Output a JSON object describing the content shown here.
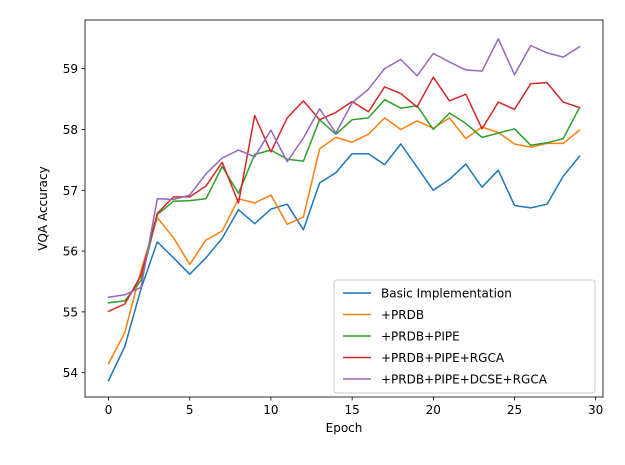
{
  "chart_data": {
    "type": "line",
    "xlabel": "Epoch",
    "ylabel": "VQA Accuracy",
    "xlim": [
      -1.45,
      30.45
    ],
    "ylim": [
      53.6,
      59.8
    ],
    "xticks": [
      0,
      5,
      10,
      15,
      20,
      25,
      30
    ],
    "yticks": [
      54,
      55,
      56,
      57,
      58,
      59
    ],
    "grid": false,
    "legend_position": "lower-right",
    "x": [
      0,
      1,
      2,
      3,
      4,
      5,
      6,
      7,
      8,
      9,
      10,
      11,
      12,
      13,
      14,
      15,
      16,
      17,
      18,
      19,
      20,
      21,
      22,
      23,
      24,
      25,
      26,
      27,
      28,
      29
    ],
    "series": [
      {
        "name": "Basic Implementation",
        "color": "#1f77b4",
        "values": [
          53.87,
          54.43,
          55.38,
          56.15,
          55.89,
          55.62,
          55.89,
          56.21,
          56.68,
          56.45,
          56.69,
          56.77,
          56.35,
          57.12,
          57.29,
          57.6,
          57.6,
          57.42,
          57.76,
          57.38,
          57.0,
          57.18,
          57.43,
          57.05,
          57.33,
          56.75,
          56.71,
          56.77,
          57.23,
          57.56
        ]
      },
      {
        "name": "+PRDB",
        "color": "#ff7f0e",
        "values": [
          54.15,
          54.66,
          55.68,
          56.55,
          56.22,
          55.78,
          56.18,
          56.33,
          56.86,
          56.79,
          56.92,
          56.44,
          56.56,
          57.68,
          57.87,
          57.79,
          57.92,
          58.19,
          58.0,
          58.14,
          58.02,
          58.19,
          57.85,
          58.04,
          57.95,
          57.76,
          57.71,
          57.77,
          57.77,
          57.99
        ]
      },
      {
        "name": "+PRDB+PIPE",
        "color": "#2ca02c",
        "values": [
          55.15,
          55.18,
          55.52,
          56.6,
          56.82,
          56.83,
          56.86,
          57.39,
          56.95,
          57.59,
          57.66,
          57.51,
          57.48,
          58.16,
          57.92,
          58.16,
          58.19,
          58.49,
          58.35,
          58.39,
          58.0,
          58.27,
          58.1,
          57.87,
          57.94,
          58.01,
          57.74,
          57.78,
          57.85,
          58.36
        ]
      },
      {
        "name": "+PRDB+PIPE+RGCA",
        "color": "#d62728",
        "values": [
          55.01,
          55.13,
          55.6,
          56.62,
          56.89,
          56.89,
          57.07,
          57.46,
          56.79,
          58.23,
          57.63,
          58.19,
          58.47,
          58.16,
          58.28,
          58.46,
          58.29,
          58.7,
          58.59,
          58.37,
          58.86,
          58.47,
          58.58,
          58.01,
          58.45,
          58.33,
          58.75,
          58.77,
          58.45,
          58.36
        ]
      },
      {
        "name": "+PRDB+PIPE+DCSE+RGCA",
        "color": "#9467bd",
        "values": [
          55.24,
          55.28,
          55.4,
          56.86,
          56.85,
          56.92,
          57.27,
          57.53,
          57.66,
          57.55,
          57.99,
          57.47,
          57.86,
          58.34,
          57.94,
          58.44,
          58.66,
          59.0,
          59.15,
          58.88,
          59.25,
          59.11,
          58.98,
          58.96,
          59.49,
          58.9,
          59.38,
          59.26,
          59.19,
          59.36
        ]
      }
    ]
  }
}
